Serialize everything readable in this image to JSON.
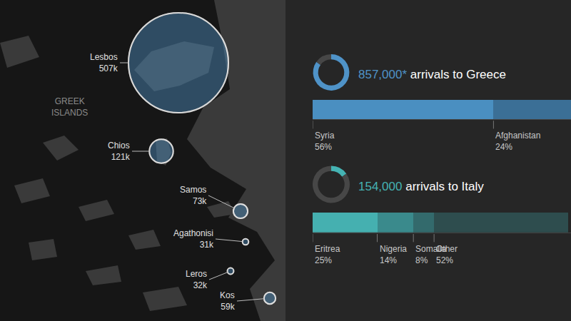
{
  "chart_data": [
    {
      "type": "bubble",
      "annotation": "GREEK ISLANDS",
      "categories": [
        "Lesbos",
        "Chios",
        "Samos",
        "Agathonisi",
        "Leros",
        "Kos"
      ],
      "values": [
        507,
        121,
        73,
        31,
        32,
        59
      ],
      "value_labels": [
        "507k",
        "121k",
        "73k",
        "31k",
        "32k",
        "59k"
      ],
      "color": "#4f8fc0",
      "data_labels": true
    },
    {
      "type": "bar",
      "orientation": "horizontal",
      "stacked": true,
      "total": 857000,
      "total_label": "857,000*",
      "title": "arrivals to Greece",
      "color": "#4f93c8",
      "categories": [
        "Syria",
        "Afghanistan"
      ],
      "values": [
        56,
        24
      ],
      "value_labels": [
        "56%",
        "24%"
      ],
      "colors": [
        "#4a8fc1",
        "#3b6f96"
      ],
      "xlim": [
        0,
        80
      ],
      "tick_labels": false,
      "data_labels": true
    },
    {
      "type": "bar",
      "orientation": "horizontal",
      "stacked": true,
      "total": 154000,
      "total_label": "154,000",
      "title": "arrivals to Italy",
      "color": "#45b3b3",
      "categories": [
        "Eritrea",
        "Nigeria",
        "Somalia",
        "Other"
      ],
      "values": [
        25,
        14,
        8,
        52
      ],
      "value_labels": [
        "25%",
        "14%",
        "8%",
        "52%"
      ],
      "colors": [
        "#45b0b0",
        "#3a8a8c",
        "#336a6c",
        "#2e4d4e"
      ],
      "xlim": [
        0,
        100
      ],
      "tick_labels": false,
      "data_labels": true
    }
  ]
}
